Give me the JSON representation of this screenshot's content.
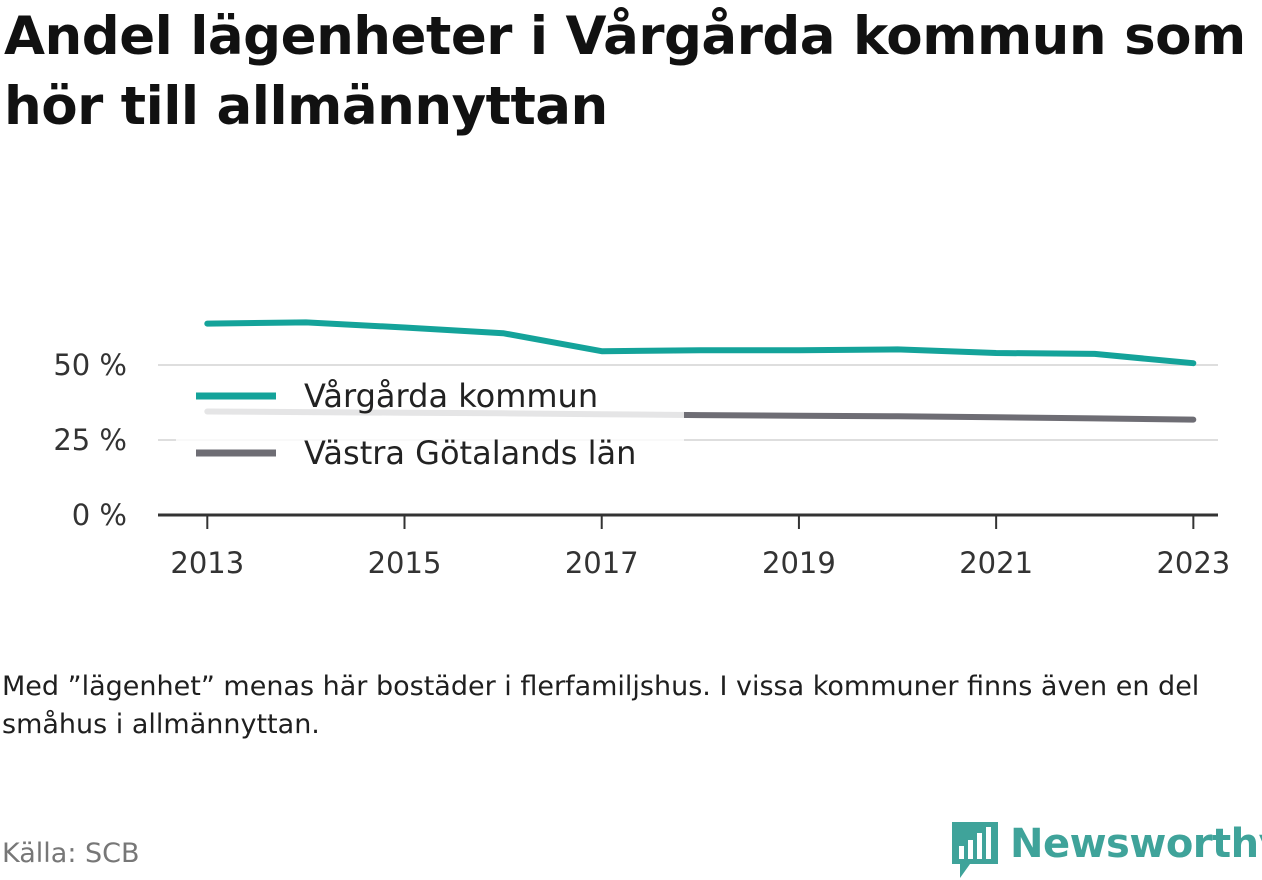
{
  "header": {
    "title": "Andel lägenheter i Vårgårda kommun som hör till allmännyttan"
  },
  "chart_data": {
    "type": "line",
    "x": [
      2013,
      2014,
      2015,
      2016,
      2017,
      2018,
      2019,
      2020,
      2021,
      2022,
      2023
    ],
    "series": [
      {
        "name": "Vårgårda kommun",
        "color": "#14a39a",
        "values": [
          63.8,
          64.2,
          62.5,
          60.6,
          54.6,
          54.9,
          54.9,
          55.2,
          54.0,
          53.7,
          50.6
        ]
      },
      {
        "name": "Västra Götalands län",
        "color": "#6e6d74",
        "values": [
          34.5,
          34.3,
          34.1,
          33.9,
          33.6,
          33.3,
          33.1,
          32.9,
          32.6,
          32.2,
          31.8
        ]
      }
    ],
    "yticks": [
      {
        "value": 0,
        "label": "0 %"
      },
      {
        "value": 25,
        "label": "25 %"
      },
      {
        "value": 50,
        "label": "50 %"
      }
    ],
    "xticks": [
      {
        "value": 2013,
        "label": "2013"
      },
      {
        "value": 2015,
        "label": "2015"
      },
      {
        "value": 2017,
        "label": "2017"
      },
      {
        "value": 2019,
        "label": "2019"
      },
      {
        "value": 2021,
        "label": "2021"
      },
      {
        "value": 2023,
        "label": "2023"
      }
    ],
    "xlim": [
      2012.5,
      2023.25
    ],
    "ylim": [
      0,
      75
    ],
    "grid": true,
    "legend_position": "lower-left"
  },
  "footer": {
    "note": "Med ”lägenhet” menas här bostäder i flerfamiljshus. I vissa kommuner finns även en del småhus i allmännyttan.",
    "source": "Källa: SCB",
    "brand": "Newsworthy",
    "brand_color": "#3fa39a"
  }
}
